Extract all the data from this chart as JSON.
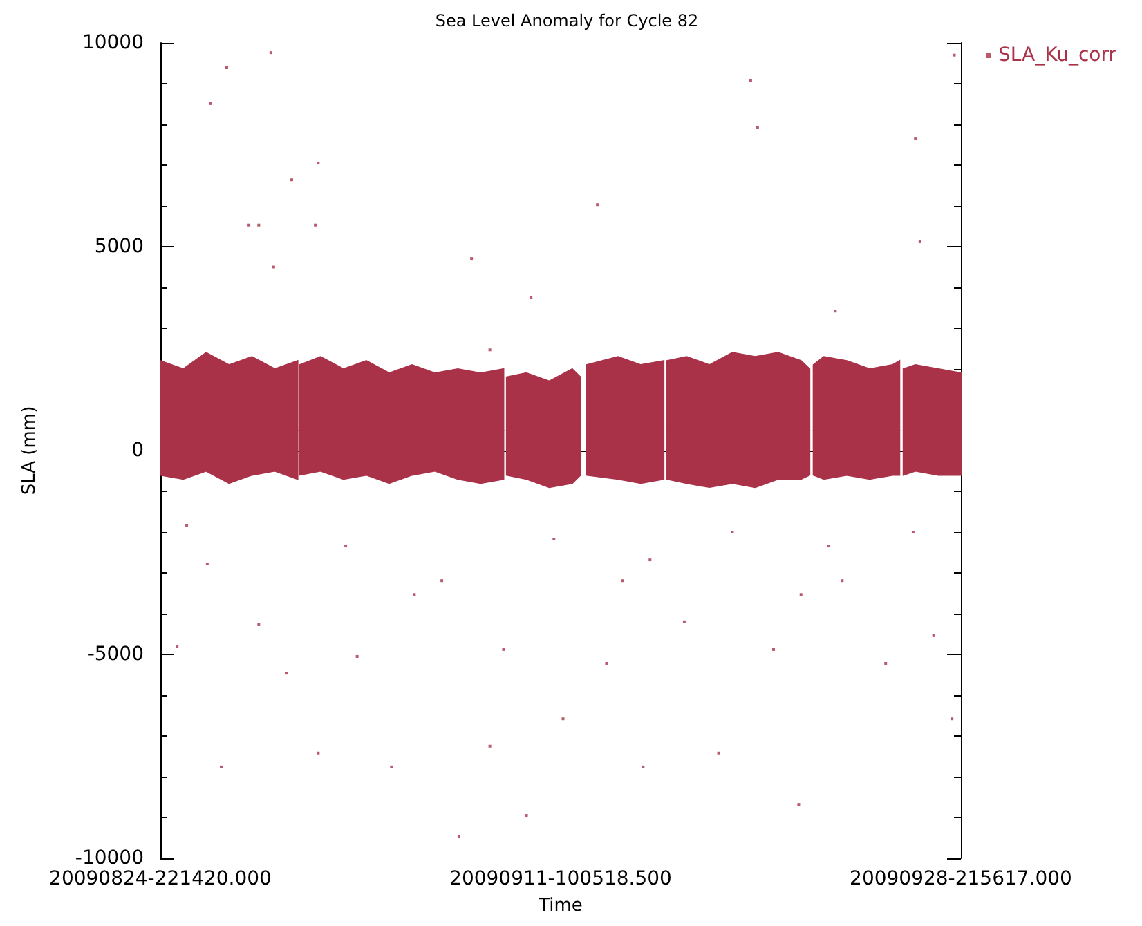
{
  "chart_data": {
    "type": "scatter",
    "title": "Sea Level Anomaly for Cycle 82",
    "xlabel": "Time",
    "ylabel": "SLA (mm)",
    "xlim": [
      "2009-08-24T22:14",
      "2009-09-28T21:56"
    ],
    "xticks": [
      {
        "value": "2009-08-24T22:14",
        "label": "20090824-221420.000"
      },
      {
        "value": "2009-09-11T10:05",
        "label": "20090911-100518.500"
      },
      {
        "value": "2009-09-28T21:56",
        "label": "20090928-215617.000"
      }
    ],
    "ylim": [
      -10000,
      10000
    ],
    "yticks": [
      -10000,
      -5000,
      0,
      5000,
      10000
    ],
    "legend": "top right",
    "series": [
      {
        "type": "line",
        "color": "#a93249",
        "x": [
          "2009-08-24T22:14",
          "2009-08-25T22:14",
          "2009-08-26T22:14",
          "2009-08-27T22:14",
          "2009-08-28T22:14",
          "2009-08-29T22:14",
          "2009-08-30T22:14",
          "2009-08-30T23:12",
          "2009-08-31T00:12",
          "2009-08-31T22:14",
          "2009-09-01T22:14",
          "2009-09-02T22:14",
          "2009-09-03T22:14",
          "2009-09-04T22:14",
          "2009-09-05T22:14",
          "2009-09-06T22:14",
          "2009-09-07T22:14",
          "2009-09-08T22:14",
          "2009-09-08T23:26",
          "2009-09-09T01:26",
          "2009-09-09T22:14",
          "2009-09-10T22:14",
          "2009-09-11T22:14",
          "2009-09-12T07:00",
          "2009-09-12T10:00",
          "2009-09-12T13:00",
          "2009-09-13T22:14",
          "2009-09-14T22:14",
          "2009-09-15T22:14",
          "2009-09-15T23:26",
          "2009-09-16T01:26",
          "2009-09-16T22:14",
          "2009-09-17T22:14",
          "2009-09-18T22:14",
          "2009-09-19T22:14",
          "2009-09-20T22:14",
          "2009-09-21T22:14",
          "2009-09-22T07:15",
          "2009-09-22T09:15",
          "2009-09-22T11:15",
          "2009-09-22T22:14",
          "2009-09-23T22:14",
          "2009-09-24T22:14",
          "2009-09-25T22:14",
          "2009-09-26T05:36",
          "2009-09-26T07:36",
          "2009-09-26T09:36",
          "2009-09-26T22:14",
          "2009-09-27T22:14",
          "2009-09-28T21:56"
        ],
        "values": [
          500,
          500,
          500,
          500,
          500,
          500,
          500,
          null,
          500,
          500,
          500,
          500,
          500,
          500,
          500,
          500,
          500,
          500,
          null,
          500,
          500,
          500,
          500,
          500,
          null,
          500,
          500,
          500,
          500,
          null,
          500,
          500,
          500,
          500,
          500,
          500,
          500,
          500,
          null,
          500,
          500,
          500,
          500,
          500,
          500,
          null,
          500,
          500,
          500,
          500
        ],
        "lower": [
          -600,
          -700,
          -500,
          -800,
          -600,
          -500,
          -700,
          null,
          -600,
          -500,
          -700,
          -600,
          -800,
          -600,
          -500,
          -700,
          -800,
          -700,
          null,
          -600,
          -700,
          -900,
          -800,
          -600,
          null,
          -600,
          -700,
          -800,
          -700,
          null,
          -700,
          -800,
          -900,
          -800,
          -900,
          -700,
          -700,
          -600,
          null,
          -600,
          -700,
          -600,
          -700,
          -600,
          -600,
          null,
          -600,
          -500,
          -600,
          -600
        ],
        "upper": [
          2200,
          2000,
          2400,
          2100,
          2300,
          2000,
          2200,
          null,
          2100,
          2300,
          2000,
          2200,
          1900,
          2100,
          1900,
          2000,
          1900,
          2000,
          null,
          1800,
          1900,
          1700,
          2000,
          1800,
          null,
          2100,
          2300,
          2100,
          2200,
          null,
          2200,
          2300,
          2100,
          2400,
          2300,
          2400,
          2200,
          2000,
          null,
          2100,
          2300,
          2200,
          2000,
          2100,
          2200,
          null,
          2000,
          2100,
          2000,
          1900
        ]
      },
      {
        "name": "SLA_Ku_corr",
        "color": "#a93249",
        "marker": "square",
        "x": [
          "2009-08-27T19:50",
          "2009-08-29T18:08",
          "2009-08-27T03:02",
          "2009-08-30T16:00",
          "2009-08-28T19:08",
          "2009-08-29T05:26",
          "2009-08-31T19:50",
          "2009-08-31T16:44",
          "2009-08-29T21:02",
          "2009-09-07T12:38",
          "2009-09-10T03:02",
          "2009-09-13T00:38",
          "2009-09-19T17:26",
          "2009-09-20T00:38",
          "2009-09-26T22:14",
          "2009-09-27T03:02",
          "2009-09-28T15:02",
          "2009-09-08T07:50",
          "2009-09-23T10:14",
          "2009-08-26T23:26",
          "2009-08-25T15:44",
          "2009-08-27T14:02",
          "2009-08-29T05:26",
          "2009-08-30T10:14",
          "2009-08-31T19:50",
          "2009-09-02T12:38",
          "2009-09-04T00:38",
          "2009-09-06T23:26",
          "2009-09-08T07:50",
          "2009-09-09T22:14",
          "2009-09-11T12:38",
          "2009-09-13T10:14",
          "2009-09-15T00:38",
          "2009-09-16T19:50",
          "2009-09-18T07:50",
          "2009-09-20T17:26",
          "2009-09-21T19:50",
          "2009-09-23T17:26",
          "2009-09-25T15:02",
          "2009-09-27T17:26",
          "2009-09-28T12:38",
          "2009-08-26T01:50",
          "2009-09-02T00:38",
          "2009-09-06T05:26",
          "2009-09-11T03:02",
          "2009-09-15T07:50",
          "2009-09-18T22:14",
          "2009-09-23T03:02",
          "2009-09-26T19:50",
          "2009-09-05T00:38",
          "2009-09-14T03:02",
          "2009-09-21T22:14",
          "2009-09-08T22:14"
        ],
        "values": [
          9390,
          9760,
          8510,
          6640,
          5530,
          5530,
          7050,
          5530,
          4500,
          4710,
          3760,
          6030,
          9080,
          7930,
          7660,
          5120,
          9700,
          2470,
          3420,
          -2780,
          -4810,
          -7760,
          -4270,
          -5460,
          -7420,
          -5050,
          -7760,
          -9460,
          -7250,
          -8950,
          -6580,
          -5220,
          -7760,
          -4200,
          -7420,
          -4880,
          -8680,
          -3190,
          -5220,
          -4540,
          -6580,
          -1830,
          -2340,
          -3190,
          -2170,
          -2680,
          -2000,
          -2340,
          -2000,
          -3530,
          -3190,
          -3530,
          -4880
        ]
      }
    ]
  }
}
